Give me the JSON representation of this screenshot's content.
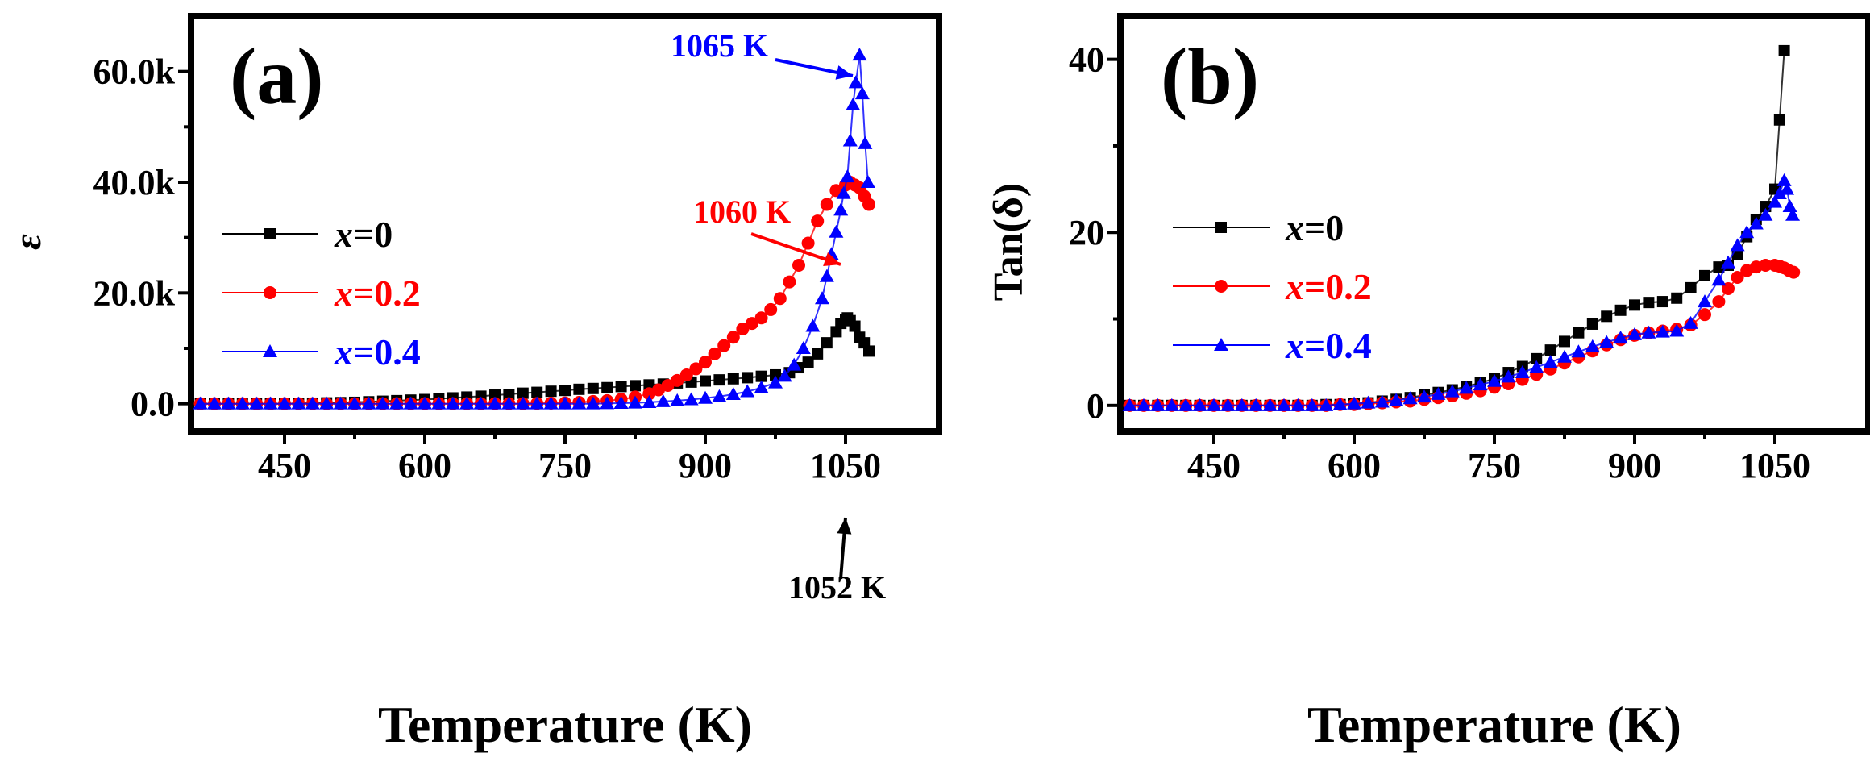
{
  "chart_data": [
    {
      "type": "scatter",
      "panel_label": "(a)",
      "xlabel": "Temperature (K)",
      "ylabel": "ε",
      "xlim": [
        350,
        1150
      ],
      "ylim": [
        -5000,
        70000
      ],
      "xticks": [
        450,
        600,
        750,
        900,
        1050
      ],
      "yticks": [
        0,
        20000,
        40000,
        60000
      ],
      "ytick_labels": [
        "0.0",
        "20.0k",
        "40.0k",
        "60.0k"
      ],
      "legend_position": "center-left",
      "series": [
        {
          "name": "x=0",
          "symbol_var": "x",
          "symbol_val": "=0",
          "color": "#000000",
          "marker": "square",
          "x": [
            360,
            375,
            390,
            405,
            420,
            435,
            450,
            465,
            480,
            495,
            510,
            525,
            540,
            555,
            570,
            585,
            600,
            615,
            630,
            645,
            660,
            675,
            690,
            705,
            720,
            735,
            750,
            765,
            780,
            795,
            810,
            825,
            840,
            855,
            870,
            885,
            900,
            915,
            930,
            945,
            960,
            975,
            990,
            1000,
            1010,
            1020,
            1030,
            1040,
            1045,
            1050,
            1052,
            1055,
            1060,
            1065,
            1070,
            1075
          ],
          "y": [
            0,
            0,
            0,
            0,
            0,
            0,
            0,
            50,
            100,
            150,
            200,
            250,
            350,
            450,
            550,
            650,
            750,
            900,
            1050,
            1200,
            1350,
            1550,
            1700,
            1900,
            2050,
            2250,
            2400,
            2600,
            2750,
            2900,
            3100,
            3250,
            3400,
            3550,
            3750,
            3900,
            4100,
            4300,
            4500,
            4700,
            4950,
            5200,
            5600,
            6500,
            7500,
            9000,
            11000,
            13000,
            14500,
            15200,
            15500,
            15000,
            14000,
            12000,
            11000,
            9500
          ]
        },
        {
          "name": "x=0.2",
          "symbol_var": "x",
          "symbol_val": "=0.2",
          "color": "#ff0000",
          "marker": "circle",
          "x": [
            360,
            375,
            390,
            405,
            420,
            435,
            450,
            465,
            480,
            495,
            510,
            525,
            540,
            555,
            570,
            585,
            600,
            615,
            630,
            645,
            660,
            675,
            690,
            705,
            720,
            735,
            750,
            765,
            780,
            795,
            810,
            825,
            840,
            850,
            860,
            870,
            880,
            890,
            900,
            910,
            920,
            930,
            940,
            950,
            960,
            970,
            980,
            990,
            1000,
            1010,
            1020,
            1030,
            1040,
            1050,
            1055,
            1060,
            1065,
            1070,
            1075
          ],
          "y": [
            0,
            0,
            0,
            0,
            0,
            0,
            0,
            0,
            0,
            0,
            0,
            0,
            0,
            0,
            0,
            0,
            0,
            0,
            0,
            0,
            0,
            0,
            0,
            0,
            50,
            100,
            150,
            250,
            400,
            550,
            800,
            1200,
            1800,
            2500,
            3300,
            4200,
            5200,
            6300,
            7500,
            9000,
            10500,
            12000,
            13500,
            14500,
            15500,
            17000,
            19000,
            22000,
            25000,
            29000,
            33000,
            36000,
            38500,
            39500,
            40000,
            39500,
            39000,
            37500,
            36000
          ]
        },
        {
          "name": "x=0.4",
          "symbol_var": "x",
          "symbol_val": "=0.4",
          "color": "#0000ff",
          "marker": "triangle",
          "x": [
            360,
            375,
            390,
            405,
            420,
            435,
            450,
            465,
            480,
            495,
            510,
            525,
            540,
            555,
            570,
            585,
            600,
            615,
            630,
            645,
            660,
            675,
            690,
            705,
            720,
            735,
            750,
            765,
            780,
            795,
            810,
            825,
            840,
            855,
            870,
            885,
            900,
            915,
            930,
            945,
            960,
            975,
            985,
            995,
            1005,
            1015,
            1025,
            1030,
            1035,
            1040,
            1045,
            1048,
            1052,
            1055,
            1058,
            1061,
            1065,
            1068,
            1071,
            1074
          ],
          "y": [
            0,
            0,
            0,
            0,
            0,
            0,
            0,
            0,
            0,
            0,
            0,
            0,
            0,
            0,
            0,
            0,
            0,
            0,
            0,
            0,
            0,
            0,
            0,
            0,
            0,
            0,
            0,
            0,
            0,
            50,
            100,
            150,
            250,
            400,
            550,
            750,
            1000,
            1300,
            1700,
            2200,
            2900,
            3800,
            5000,
            7000,
            10000,
            14000,
            19000,
            23000,
            27000,
            31000,
            35000,
            38000,
            41000,
            47500,
            54000,
            58000,
            63000,
            56000,
            47000,
            40000
          ]
        }
      ],
      "annotations": [
        {
          "text": "1065 K",
          "color": "#0000ff",
          "x": 1065,
          "y": 63000
        },
        {
          "text": "1060 K",
          "color": "#ff0000",
          "x": 1060,
          "y": 40000
        },
        {
          "text": "1052 K",
          "color": "#000000",
          "x": 1052,
          "y": 15500
        }
      ]
    },
    {
      "type": "scatter",
      "panel_label": "(b)",
      "xlabel": "Temperature (K)",
      "ylabel": "Tan(δ)",
      "xlim": [
        350,
        1150
      ],
      "ylim": [
        -3,
        45
      ],
      "xticks": [
        450,
        600,
        750,
        900,
        1050
      ],
      "yticks": [
        0,
        20,
        40
      ],
      "ytick_labels": [
        "0",
        "20",
        "40"
      ],
      "legend_position": "center-left",
      "series": [
        {
          "name": "x=0",
          "symbol_var": "x",
          "symbol_val": "=0",
          "color": "#000000",
          "marker": "square",
          "x": [
            360,
            375,
            390,
            405,
            420,
            435,
            450,
            465,
            480,
            495,
            510,
            525,
            540,
            555,
            570,
            585,
            600,
            615,
            630,
            645,
            660,
            675,
            690,
            705,
            720,
            735,
            750,
            765,
            780,
            795,
            810,
            825,
            840,
            855,
            870,
            885,
            900,
            915,
            930,
            945,
            960,
            975,
            990,
            1000,
            1010,
            1020,
            1030,
            1040,
            1050,
            1055,
            1060
          ],
          "y": [
            0,
            0,
            0,
            0,
            0,
            0,
            0,
            0,
            0,
            0,
            0,
            0,
            0,
            0,
            0.1,
            0.1,
            0.2,
            0.3,
            0.5,
            0.7,
            0.9,
            1.2,
            1.5,
            1.8,
            2.2,
            2.6,
            3.1,
            3.8,
            4.5,
            5.4,
            6.4,
            7.4,
            8.4,
            9.4,
            10.3,
            11.0,
            11.6,
            11.9,
            12.0,
            12.4,
            13.6,
            15.0,
            16.0,
            16.2,
            17.5,
            19.5,
            21.5,
            23.0,
            25.0,
            33.0,
            41.0
          ]
        },
        {
          "name": "x=0.2",
          "symbol_var": "x",
          "symbol_val": "=0.2",
          "color": "#ff0000",
          "marker": "circle",
          "x": [
            360,
            375,
            390,
            405,
            420,
            435,
            450,
            465,
            480,
            495,
            510,
            525,
            540,
            555,
            570,
            585,
            600,
            615,
            630,
            645,
            660,
            675,
            690,
            705,
            720,
            735,
            750,
            765,
            780,
            795,
            810,
            825,
            840,
            855,
            870,
            885,
            900,
            915,
            930,
            945,
            960,
            975,
            990,
            1000,
            1010,
            1020,
            1030,
            1040,
            1050,
            1055,
            1060,
            1065,
            1070
          ],
          "y": [
            0,
            0,
            0,
            0,
            0,
            0,
            0,
            0,
            0,
            0,
            0,
            0,
            0,
            0,
            0,
            0.1,
            0.1,
            0.2,
            0.3,
            0.4,
            0.5,
            0.7,
            0.9,
            1.1,
            1.4,
            1.7,
            2.1,
            2.5,
            3.0,
            3.6,
            4.2,
            4.9,
            5.6,
            6.3,
            7.0,
            7.6,
            8.1,
            8.4,
            8.6,
            8.8,
            9.3,
            10.5,
            12.0,
            13.5,
            14.8,
            15.6,
            16.0,
            16.2,
            16.2,
            16.1,
            15.9,
            15.6,
            15.4
          ]
        },
        {
          "name": "x=0.4",
          "symbol_var": "x",
          "symbol_val": "=0.4",
          "color": "#0000ff",
          "marker": "triangle",
          "x": [
            360,
            375,
            390,
            405,
            420,
            435,
            450,
            465,
            480,
            495,
            510,
            525,
            540,
            555,
            570,
            585,
            600,
            615,
            630,
            645,
            660,
            675,
            690,
            705,
            720,
            735,
            750,
            765,
            780,
            795,
            810,
            825,
            840,
            855,
            870,
            885,
            900,
            915,
            930,
            945,
            960,
            975,
            990,
            1000,
            1010,
            1020,
            1030,
            1040,
            1050,
            1055,
            1060,
            1063,
            1066,
            1069
          ],
          "y": [
            0,
            0,
            0,
            0,
            0,
            0,
            0,
            0,
            0,
            0,
            0,
            0,
            0,
            0,
            0,
            0.1,
            0.2,
            0.3,
            0.4,
            0.6,
            0.8,
            1.0,
            1.3,
            1.6,
            2.0,
            2.4,
            2.8,
            3.3,
            3.8,
            4.4,
            5.0,
            5.6,
            6.2,
            6.8,
            7.3,
            7.8,
            8.2,
            8.4,
            8.5,
            8.6,
            9.5,
            12.0,
            14.5,
            16.5,
            18.5,
            20.0,
            21.0,
            22.0,
            23.5,
            24.5,
            26.0,
            25.0,
            23.0,
            22.0
          ]
        }
      ],
      "annotations": []
    }
  ]
}
